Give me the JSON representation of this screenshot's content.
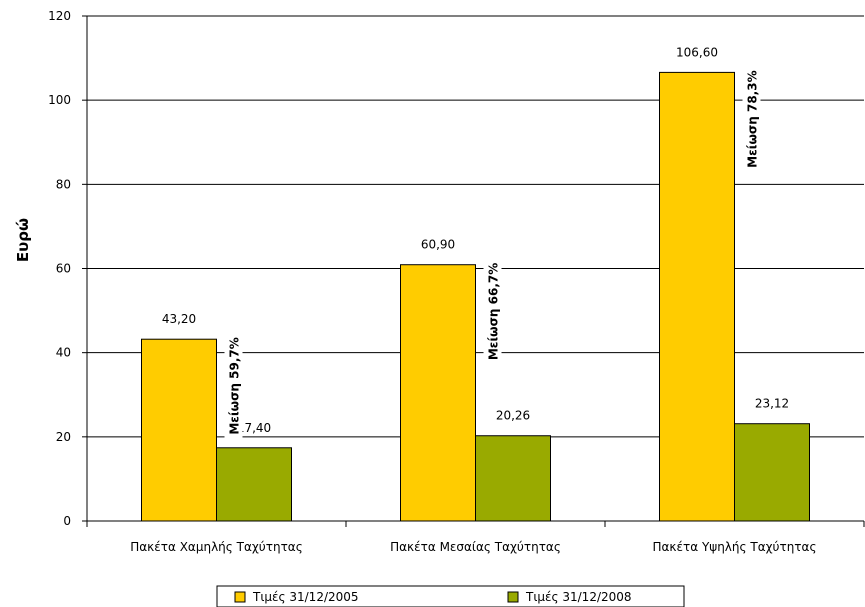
{
  "chart_data": {
    "type": "bar",
    "title": "",
    "xlabel": "",
    "ylabel": "Ευρώ",
    "ylim": [
      0,
      120
    ],
    "yticks": [
      0,
      20,
      40,
      60,
      80,
      100,
      120
    ],
    "grid": true,
    "legend_position": "bottom",
    "categories": [
      "Πακέτα Χαμηλής Ταχύτητας",
      "Πακέτα Μεσαίας Ταχύτητας",
      "Πακέτα Υψηλής Ταχύτητας"
    ],
    "series": [
      {
        "name": "Τιμές 31/12/2005",
        "color": "#ffcc00",
        "values": [
          43.2,
          60.9,
          106.6
        ],
        "labels": [
          "43,20",
          "60,90",
          "106,60"
        ]
      },
      {
        "name": "Τιμές 31/12/2008",
        "color": "#99aa00",
        "values": [
          17.4,
          20.26,
          23.12
        ],
        "labels": [
          "17,40",
          "20,26",
          "23,12"
        ]
      }
    ],
    "annotations": [
      "Μείωση 59,7%",
      "Μείωση 66,7%",
      "Μείωση 78,3%"
    ]
  }
}
